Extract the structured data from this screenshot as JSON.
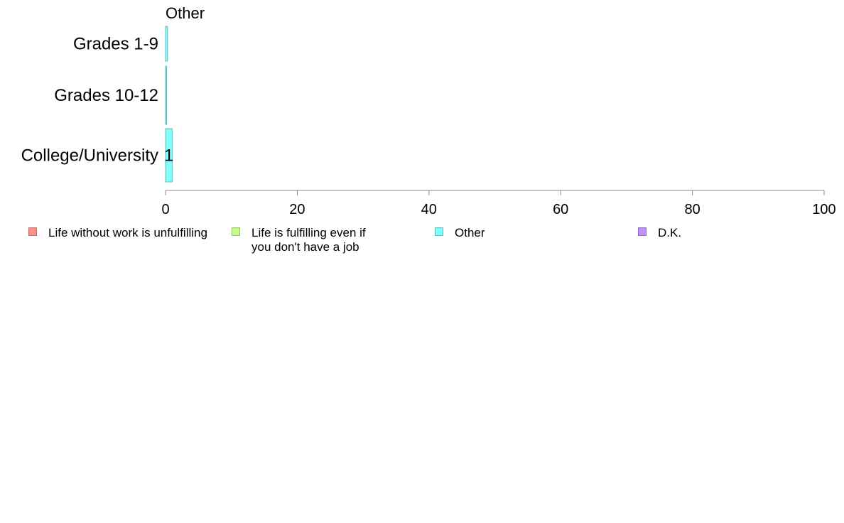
{
  "chart_data": {
    "type": "bar",
    "title": "Other",
    "categories": [
      "Grades 1-9",
      "Grades 10-12",
      "College/University"
    ],
    "series": [
      {
        "name": "Other",
        "values": [
          0.3,
          0.1,
          1
        ],
        "value_labels": [
          "",
          "",
          "1"
        ],
        "color": "#80ffff",
        "edge": "#5fbcbc"
      }
    ],
    "xlim": [
      0,
      100
    ],
    "xticks": [
      "0",
      "20",
      "40",
      "60",
      "80",
      "100"
    ],
    "xlabel": "",
    "ylabel": "",
    "legend_position": "bottom"
  },
  "legend": {
    "items": [
      {
        "label": "Life without work is unfulfilling",
        "color": "#f8918e",
        "edge": "#c46b68"
      },
      {
        "label": "Life is fulfilling even if\nyou don't have a job",
        "color": "#cbf890",
        "edge": "#93c45e"
      },
      {
        "label": "Other",
        "color": "#80ffff",
        "edge": "#5fbcbc"
      },
      {
        "label": "D.K.",
        "color": "#c192f5",
        "edge": "#8d63c4"
      }
    ]
  }
}
